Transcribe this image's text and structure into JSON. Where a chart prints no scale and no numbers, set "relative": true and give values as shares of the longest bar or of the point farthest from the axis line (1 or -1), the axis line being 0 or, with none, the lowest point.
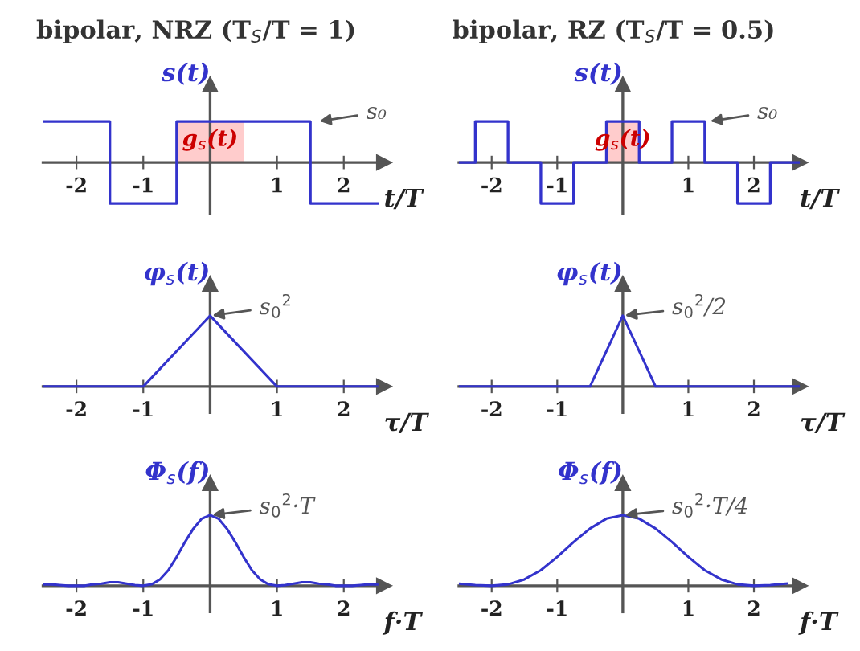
{
  "chart_data": [
    {
      "type": "step",
      "title": "bipolar, NRZ (T$_{S}$/T = 1)",
      "ylabel": "s(t)",
      "xlabel": "t/T",
      "relative": true,
      "xlim": [
        -2.5,
        2.6
      ],
      "xticks": [
        -2,
        -1,
        1,
        2
      ],
      "tick_labels": "x",
      "grid": false,
      "legend": false,
      "series": [
        {
          "type": "area",
          "name": "g$_{s}$(t)",
          "color": "#ffcccc",
          "x": [
            -0.5,
            0.5
          ],
          "values": [
            1,
            1
          ]
        },
        {
          "type": "step",
          "color": "#3333cc",
          "x": [
            -2.5,
            -1.5,
            -0.5,
            1.5,
            2.5
          ],
          "values": [
            1,
            -1,
            1,
            -1,
            -1
          ]
        }
      ],
      "annotations": [
        {
          "text": "s₀",
          "x": 1.6,
          "y": 1
        }
      ]
    },
    {
      "type": "step",
      "title": "bipolar, RZ (T$_{S}$/T = 0.5)",
      "ylabel": "s(t)",
      "xlabel": "t/T",
      "relative": true,
      "xlim": [
        -2.5,
        2.7
      ],
      "xticks": [
        -2,
        -1,
        1,
        2
      ],
      "tick_labels": "x",
      "grid": false,
      "legend": false,
      "series": [
        {
          "type": "area",
          "name": "g$_{s}$(t)",
          "color": "#ffcccc",
          "x": [
            -0.25,
            0.25
          ],
          "values": [
            1,
            1
          ]
        },
        {
          "type": "step",
          "color": "#3333cc",
          "x": [
            -2.5,
            -2.25,
            -1.75,
            -1.25,
            -0.75,
            -0.25,
            0.25,
            0.75,
            1.25,
            1.75,
            2.25,
            2.7
          ],
          "values": [
            0,
            1,
            0,
            -1,
            0,
            1,
            0,
            1,
            0,
            -1,
            0,
            0
          ]
        }
      ],
      "annotations": [
        {
          "text": "s₀",
          "x": 1.3,
          "y": 1
        }
      ]
    },
    {
      "type": "line",
      "ylabel": "φ$_{s}$(t)",
      "xlabel": "τ/T",
      "relative": true,
      "xlim": [
        -2.5,
        2.6
      ],
      "xticks": [
        -2,
        -1,
        1,
        2
      ],
      "tick_labels": "x",
      "grid": false,
      "legend": false,
      "series": [
        {
          "color": "#3333cc",
          "x": [
            -2.5,
            -1,
            0,
            1,
            2.5
          ],
          "values": [
            0,
            0,
            1,
            0,
            0
          ]
        }
      ],
      "annotations": [
        {
          "text": "s$_{0}$$^{2}$",
          "x": 0,
          "y": 1
        }
      ]
    },
    {
      "type": "line",
      "ylabel": "φ$_{s}$(t)",
      "xlabel": "τ/T",
      "relative": true,
      "xlim": [
        -2.5,
        2.7
      ],
      "xticks": [
        -2,
        -1,
        1,
        2
      ],
      "tick_labels": "x",
      "grid": false,
      "legend": false,
      "series": [
        {
          "color": "#3333cc",
          "x": [
            -2.5,
            -0.5,
            0,
            0.5,
            2.7
          ],
          "values": [
            0,
            0,
            1,
            0,
            0
          ]
        }
      ],
      "annotations": [
        {
          "text": "s$_{0}$$^{2}$/2",
          "x": 0,
          "y": 1
        }
      ]
    },
    {
      "type": "line",
      "ylabel": "Φ$_{s}$(f)",
      "xlabel": "f·T",
      "relative": true,
      "xlim": [
        -2.5,
        2.6
      ],
      "xticks": [
        -2,
        -1,
        1,
        2
      ],
      "tick_labels": "x",
      "grid": false,
      "legend": false,
      "series": [
        {
          "color": "#3333cc",
          "x": [
            -2.5,
            -2.375,
            -2.25,
            -2.125,
            -2,
            -1.875,
            -1.75,
            -1.625,
            -1.5,
            -1.375,
            -1.25,
            -1.125,
            -1,
            -0.875,
            -0.75,
            -0.625,
            -0.5,
            -0.375,
            -0.25,
            -0.125,
            0,
            0.125,
            0.25,
            0.375,
            0.5,
            0.625,
            0.75,
            0.875,
            1,
            1.125,
            1.25,
            1.375,
            1.5,
            1.625,
            1.75,
            1.875,
            2,
            2.125,
            2.25,
            2.375,
            2.5
          ],
          "values": [
            0.02,
            0.02,
            0.01,
            0,
            0,
            0,
            0.02,
            0.03,
            0.05,
            0.05,
            0.03,
            0.01,
            0,
            0.02,
            0.09,
            0.22,
            0.41,
            0.62,
            0.81,
            0.95,
            1,
            0.95,
            0.81,
            0.62,
            0.41,
            0.22,
            0.09,
            0.02,
            0,
            0.01,
            0.03,
            0.05,
            0.05,
            0.03,
            0.02,
            0,
            0,
            0,
            0.01,
            0.02,
            0.02
          ]
        }
      ],
      "annotations": [
        {
          "text": "s$_{0}$$^{2}$·T",
          "x": 0,
          "y": 1
        }
      ]
    },
    {
      "type": "line",
      "ylabel": "Φ$_{s}$(f)",
      "xlabel": "f·T",
      "relative": true,
      "xlim": [
        -2.5,
        2.7
      ],
      "xticks": [
        -2,
        -1,
        1,
        2
      ],
      "tick_labels": "x",
      "grid": false,
      "legend": false,
      "series": [
        {
          "color": "#3333cc",
          "x": [
            -2.5,
            -2.25,
            -2,
            -1.75,
            -1.5,
            -1.25,
            -1,
            -0.75,
            -0.5,
            -0.25,
            0,
            0.25,
            0.5,
            0.75,
            1,
            1.25,
            1.5,
            1.75,
            2,
            2.25,
            2.5
          ],
          "values": [
            0.03,
            0.01,
            0,
            0.02,
            0.09,
            0.22,
            0.41,
            0.62,
            0.81,
            0.95,
            1,
            0.95,
            0.81,
            0.62,
            0.41,
            0.22,
            0.09,
            0.02,
            0,
            0.01,
            0.03
          ]
        }
      ],
      "annotations": [
        {
          "text": "s$_{0}$$^{2}$·T/4",
          "x": 0,
          "y": 1
        }
      ]
    }
  ]
}
